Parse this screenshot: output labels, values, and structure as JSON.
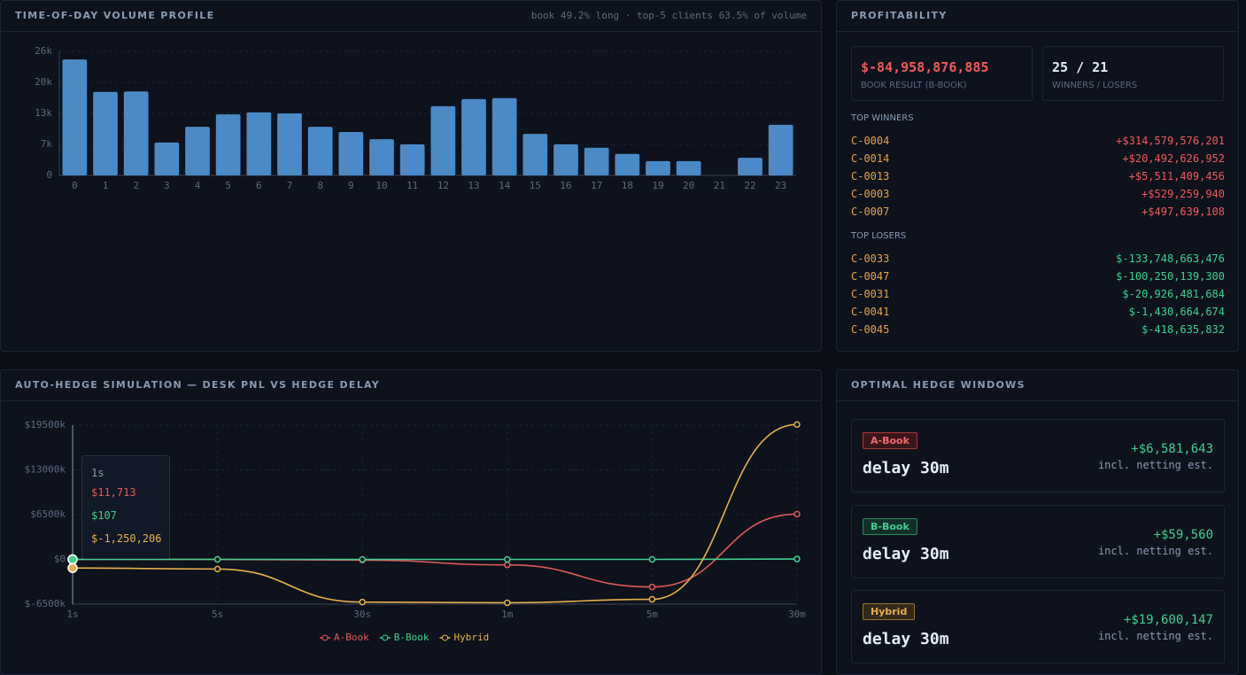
{
  "chart_data": [
    {
      "type": "bar",
      "title": "TIME-OF-DAY VOLUME PROFILE",
      "subtitle": "book 49.2% long · top-5 clients 63.5% of volume",
      "categories": [
        "0",
        "1",
        "2",
        "3",
        "4",
        "5",
        "6",
        "7",
        "8",
        "9",
        "10",
        "11",
        "12",
        "13",
        "14",
        "15",
        "16",
        "17",
        "18",
        "19",
        "20",
        "21",
        "22",
        "23"
      ],
      "values": [
        24300,
        17500,
        17600,
        6900,
        10200,
        12800,
        13200,
        13000,
        10200,
        9100,
        7600,
        6500,
        14500,
        16000,
        16200,
        8700,
        6500,
        5800,
        4500,
        3000,
        3000,
        0,
        3700,
        10600
      ],
      "color": "#4a8ac6",
      "ylim": [
        0,
        26000
      ],
      "yticks": [
        0,
        {
          "value": 6500,
          "label": "7k"
        },
        {
          "value": 13000,
          "label": "13k"
        },
        {
          "value": 19500,
          "label": "20k"
        },
        {
          "value": 26000,
          "label": "26k"
        }
      ],
      "grid": true
    },
    {
      "type": "line",
      "title": "AUTO-HEDGE SIMULATION — DESK PNL VS HEDGE DELAY",
      "categories": [
        "1s",
        "5s",
        "30s",
        "1m",
        "5m",
        "30m"
      ],
      "series": [
        {
          "name": "A-Book",
          "color": "#e05a5a",
          "values": [
            11713,
            0,
            -100000,
            -800000,
            -4000000,
            6581643
          ]
        },
        {
          "name": "B-Book",
          "color": "#3ecf8e",
          "values": [
            107,
            0,
            0,
            0,
            0,
            59560
          ]
        },
        {
          "name": "Hybrid",
          "color": "#e8b04b",
          "values": [
            -1250206,
            -1400000,
            -6200000,
            -6300000,
            -5800000,
            19600147
          ]
        }
      ],
      "ylim": [
        -6500000,
        19500000
      ],
      "yticks": [
        {
          "value": -6500000,
          "label": "$-6500k"
        },
        {
          "value": 0,
          "label": "$0"
        },
        {
          "value": 6500000,
          "label": "$6500k"
        },
        {
          "value": 13000000,
          "label": "$13000k"
        },
        {
          "value": 19500000,
          "label": "$19500k"
        }
      ],
      "grid": true,
      "tooltip": [
        "$11,713",
        "$107",
        "$-1,250,206"
      ]
    }
  ],
  "profitability": {
    "title": "PROFITABILITY",
    "stats": [
      {
        "value": "$-84,958,876,885",
        "label": "BOOK RESULT (B-BOOK)"
      },
      {
        "value": "25 / 21",
        "label": "WINNERS / LOSERS"
      }
    ],
    "winners": {
      "title": "TOP WINNERS",
      "rows": [
        {
          "client": "C-0004",
          "amount": "+$314,579,576,201"
        },
        {
          "client": "C-0014",
          "amount": "+$20,492,626,952"
        },
        {
          "client": "C-0013",
          "amount": "+$5,511,409,456"
        },
        {
          "client": "C-0003",
          "amount": "+$529,259,940"
        },
        {
          "client": "C-0007",
          "amount": "+$497,639,108"
        }
      ]
    },
    "losers": {
      "title": "TOP LOSERS",
      "rows": [
        {
          "client": "C-0033",
          "amount": "$-133,748,663,476"
        },
        {
          "client": "C-0047",
          "amount": "$-100,250,139,300"
        },
        {
          "client": "C-0031",
          "amount": "$-20,926,481,684"
        },
        {
          "client": "C-0041",
          "amount": "$-1,430,664,674"
        },
        {
          "client": "C-0045",
          "amount": "$-418,635,832"
        }
      ]
    }
  },
  "hedge_windows": {
    "title": "OPTIMAL HEDGE WINDOWS",
    "cards": [
      {
        "tag": "A-Book",
        "delay": "delay 30m",
        "amount": "+$6,581,643",
        "note": "incl. netting est."
      },
      {
        "tag": "B-Book",
        "delay": "delay 30m",
        "amount": "+$59,560",
        "note": "incl. netting est."
      },
      {
        "tag": "Hybrid",
        "delay": "delay 30m",
        "amount": "+$19,600,147",
        "note": "incl. netting est."
      }
    ]
  }
}
